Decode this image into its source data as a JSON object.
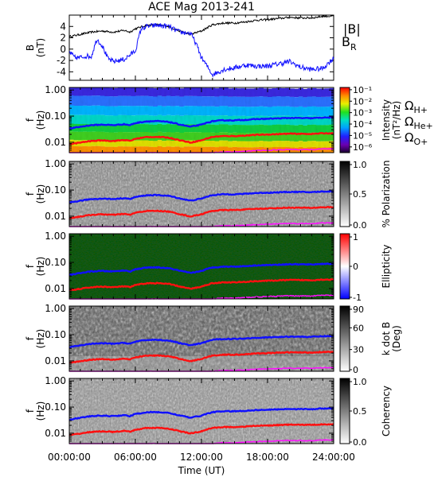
{
  "chart_data": [
    {
      "type": "line",
      "title": "ACE Mag 2013-241",
      "ylabel": "B",
      "yunit": "(nT)",
      "yticks": [
        "4",
        "2",
        "0",
        "-2",
        "-4"
      ],
      "ylim": [
        -5.5,
        6
      ],
      "series": [
        {
          "name": "|B|",
          "color": "#000000",
          "t": [
            0,
            1,
            2,
            3,
            4,
            5,
            5.5,
            6,
            7,
            8,
            9,
            10,
            11,
            12,
            13,
            14,
            15,
            16,
            17,
            18,
            19,
            20,
            21,
            22,
            23,
            24
          ],
          "values": [
            2.2,
            2.6,
            3.0,
            3.2,
            3.0,
            3.3,
            3.0,
            3.6,
            4.2,
            4.3,
            4.0,
            3.2,
            2.6,
            3.2,
            4.3,
            4.6,
            4.6,
            4.8,
            5.1,
            5.2,
            5.4,
            5.6,
            5.5,
            5.5,
            5.8,
            5.8
          ]
        },
        {
          "name": "B",
          "name_sub": "R",
          "color": "#1010ff",
          "t": [
            0,
            0.5,
            1,
            1.5,
            2,
            2.5,
            3,
            3.5,
            4,
            5,
            6,
            6.5,
            7,
            8,
            9,
            10,
            11,
            11.5,
            12,
            13,
            14,
            15,
            16,
            17,
            18,
            19,
            20,
            21,
            22,
            23,
            24
          ],
          "values": [
            -0.5,
            -1.5,
            -1.5,
            -1.2,
            -1.3,
            1.8,
            0.6,
            -1.7,
            -2.2,
            -1.8,
            -0.3,
            3.5,
            4.0,
            4.2,
            4.0,
            3.0,
            2.8,
            1.0,
            -1.5,
            -4.5,
            -3.6,
            -3.3,
            -2.8,
            -3.0,
            -3.0,
            -2.6,
            -2.2,
            -3.2,
            -3.6,
            -3.4,
            -1.6
          ]
        }
      ]
    },
    {
      "type": "heatmap",
      "ylabel": "f",
      "yunit": "(Hz)",
      "colorbar_label": "Intensity",
      "colorbar_unit": "(nT²/Hz)",
      "colorbar_ticks": [
        "10⁻¹",
        "10⁻²",
        "10⁻³",
        "10⁻⁴",
        "10⁻⁵",
        "10⁻⁶"
      ],
      "colorbar_range": [
        -6.5,
        -0.8
      ]
    },
    {
      "type": "heatmap",
      "ylabel": "f",
      "yunit": "(Hz)",
      "colorbar_label": "% Polarization",
      "colorbar_ticks": [
        "1.0",
        "0.5",
        "0.0"
      ],
      "colorbar_range": [
        0,
        1
      ]
    },
    {
      "type": "heatmap",
      "ylabel": "f",
      "yunit": "(Hz)",
      "colorbar_label": "Ellipticity",
      "colorbar_ticks": [
        "1",
        "0",
        "-1"
      ],
      "colorbar_range": [
        -1,
        1
      ]
    },
    {
      "type": "heatmap",
      "ylabel": "f",
      "yunit": "(Hz)",
      "colorbar_label": "k dot B",
      "colorbar_unit": "(Deg)",
      "colorbar_ticks": [
        "90",
        "60",
        "30",
        "0"
      ],
      "colorbar_range": [
        0,
        90
      ]
    },
    {
      "type": "heatmap",
      "ylabel": "f",
      "yunit": "(Hz)",
      "colorbar_label": "Coherency",
      "colorbar_ticks": [
        "1.0",
        "0.5",
        "0.0"
      ],
      "colorbar_range": [
        0,
        1
      ]
    }
  ],
  "freq_axis": {
    "yticks": [
      "1.00",
      "0.10",
      "0.01"
    ],
    "ylim_hz": [
      0.004,
      1.25
    ]
  },
  "time_axis": {
    "xlabel": "Time (UT)",
    "ticks": [
      "00:00:00",
      "06:00:00",
      "12:00:00",
      "18:00:00",
      "24:00:00"
    ],
    "range_hours": [
      0,
      24
    ]
  },
  "gyro_lines": [
    {
      "name": "Ω",
      "name_sub": "H+",
      "color": "#1010ff",
      "t": [
        0,
        1,
        2,
        3,
        4,
        5,
        5.5,
        6,
        7,
        8,
        9,
        10,
        11,
        12,
        13,
        14,
        15,
        16,
        17,
        18,
        19,
        20,
        21,
        22,
        23,
        24
      ],
      "hz": [
        0.033,
        0.039,
        0.045,
        0.047,
        0.045,
        0.049,
        0.045,
        0.054,
        0.063,
        0.064,
        0.06,
        0.048,
        0.039,
        0.047,
        0.064,
        0.069,
        0.069,
        0.072,
        0.077,
        0.079,
        0.082,
        0.085,
        0.084,
        0.083,
        0.088,
        0.088
      ]
    },
    {
      "name": "Ω",
      "name_sub": "He+",
      "color": "#ff1010",
      "t": [
        0,
        1,
        2,
        3,
        4,
        5,
        5.5,
        6,
        7,
        8,
        9,
        10,
        11,
        12,
        13,
        14,
        15,
        16,
        17,
        18,
        19,
        20,
        21,
        22,
        23,
        24
      ],
      "hz": [
        0.0083,
        0.0097,
        0.0112,
        0.0118,
        0.0112,
        0.0122,
        0.0112,
        0.0135,
        0.0158,
        0.016,
        0.015,
        0.012,
        0.0097,
        0.0118,
        0.016,
        0.0172,
        0.0172,
        0.018,
        0.0192,
        0.0198,
        0.0205,
        0.0212,
        0.021,
        0.0208,
        0.022,
        0.022
      ]
    },
    {
      "name": "Ω",
      "name_sub": "O+",
      "color": "#ff10ff",
      "t": [
        0,
        1,
        2,
        3,
        4,
        5,
        5.5,
        6,
        7,
        8,
        9,
        10,
        11,
        12,
        13,
        14,
        15,
        16,
        17,
        18,
        19,
        20,
        21,
        22,
        23,
        24
      ],
      "hz": [
        0.0021,
        0.0024,
        0.0028,
        0.0029,
        0.0028,
        0.0031,
        0.0028,
        0.0034,
        0.0039,
        0.004,
        0.0037,
        0.003,
        0.0024,
        0.003,
        0.004,
        0.0043,
        0.0043,
        0.0045,
        0.0048,
        0.0049,
        0.0051,
        0.0053,
        0.0052,
        0.0052,
        0.0055,
        0.0055
      ]
    }
  ]
}
